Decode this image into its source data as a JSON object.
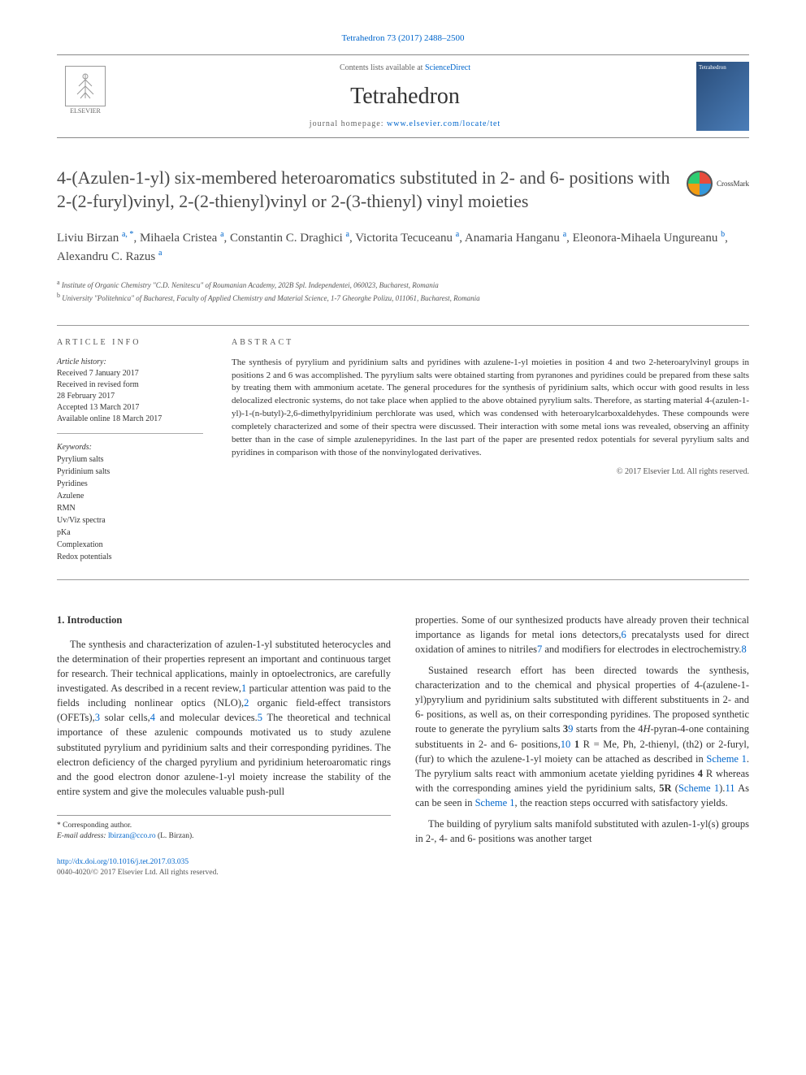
{
  "citation": "Tetrahedron 73 (2017) 2488–2500",
  "masthead": {
    "contents_prefix": "Contents lists available at ",
    "contents_link": "ScienceDirect",
    "journal": "Tetrahedron",
    "homepage_prefix": "journal homepage: ",
    "homepage_link": "www.elsevier.com/locate/tet",
    "publisher": "ELSEVIER",
    "cover_text": "Tetrahedron"
  },
  "crossmark": "CrossMark",
  "title": "4-(Azulen-1-yl) six-membered heteroaromatics substituted in 2- and 6- positions with 2-(2-furyl)vinyl, 2-(2-thienyl)vinyl or 2-(3-thienyl) vinyl moieties",
  "authors_html": "Liviu Birzan <sup class='author-sup'>a, *</sup>, Mihaela Cristea <sup class='author-sup'>a</sup>, Constantin C. Draghici <sup class='author-sup'>a</sup>, Victorita Tecuceanu <sup class='author-sup'>a</sup>, Anamaria Hanganu <sup class='author-sup'>a</sup>, Eleonora-Mihaela Ungureanu <sup class='author-sup'>b</sup>, Alexandru C. Razus <sup class='author-sup'>a</sup>",
  "affiliations": [
    {
      "sup": "a",
      "text": "Institute of Organic Chemistry \"C.D. Nenitescu\" of Roumanian Academy, 202B Spl. Independentei, 060023, Bucharest, Romania"
    },
    {
      "sup": "b",
      "text": "University \"Politehnica\" of Bucharest, Faculty of Applied Chemistry and Material Science, 1-7 Gheorghe Polizu, 011061, Bucharest, Romania"
    }
  ],
  "info": {
    "heading": "ARTICLE INFO",
    "history_label": "Article history:",
    "history": [
      "Received 7 January 2017",
      "Received in revised form",
      "28 February 2017",
      "Accepted 13 March 2017",
      "Available online 18 March 2017"
    ],
    "keywords_label": "Keywords:",
    "keywords": [
      "Pyrylium salts",
      "Pyridinium salts",
      "Pyridines",
      "Azulene",
      "RMN",
      "Uv/Viz spectra",
      "pKa",
      "Complexation",
      "Redox potentials"
    ]
  },
  "abstract": {
    "heading": "ABSTRACT",
    "text": "The synthesis of pyrylium and pyridinium salts and pyridines with azulene-1-yl moieties in position 4 and two 2-heteroarylvinyl groups in positions 2 and 6 was accomplished. The pyrylium salts were obtained starting from pyranones and pyridines could be prepared from these salts by treating them with ammonium acetate. The general procedures for the synthesis of pyridinium salts, which occur with good results in less delocalized electronic systems, do not take place when applied to the above obtained pyrylium salts. Therefore, as starting material 4-(azulen-1-yl)-1-(n-butyl)-2,6-dimethylpyridinium perchlorate was used, which was condensed with heteroarylcarboxaldehydes. These compounds were completely characterized and some of their spectra were discussed. Their interaction with some metal ions was revealed, observing an affinity better than in the case of simple azulenepyridines. In the last part of the paper are presented redox potentials for several pyrylium salts and pyridines in comparison with those of the nonvinylogated derivatives.",
    "copyright": "© 2017 Elsevier Ltd. All rights reserved."
  },
  "body": {
    "section_heading": "1. Introduction",
    "left_paras": [
      "The synthesis and characterization of azulen-1-yl substituted heterocycles and the determination of their properties represent an important and continuous target for research. Their technical applications, mainly in optoelectronics, are carefully investigated. As described in a recent review,<a class='ref-link' data-name='citation-ref' data-interactable='true'>1</a> particular attention was paid to the fields including nonlinear optics (NLO),<a class='ref-link' data-name='citation-ref' data-interactable='true'>2</a> organic field-effect transistors (OFETs),<a class='ref-link' data-name='citation-ref' data-interactable='true'>3</a> solar cells,<a class='ref-link' data-name='citation-ref' data-interactable='true'>4</a> and molecular devices.<a class='ref-link' data-name='citation-ref' data-interactable='true'>5</a> The theoretical and technical importance of these azulenic compounds motivated us to study azulene substituted pyrylium and pyridinium salts and their corresponding pyridines. The electron deficiency of the charged pyrylium and pyridinium heteroaromatic rings and the good electron donor azulene-1-yl moiety increase the stability of the entire system and give the molecules valuable push-pull"
    ],
    "right_paras": [
      "properties. Some of our synthesized products have already proven their technical importance as ligands for metal ions detectors,<a class='ref-link' data-name='citation-ref' data-interactable='true'>6</a> precatalysts used for direct oxidation of amines to nitriles<a class='ref-link' data-name='citation-ref' data-interactable='true'>7</a> and modifiers for electrodes in electrochemistry.<a class='ref-link' data-name='citation-ref' data-interactable='true'>8</a>",
      "Sustained research effort has been directed towards the synthesis, characterization and to the chemical and physical properties of 4-(azulene-1-yl)pyrylium and pyridinium salts substituted with different substituents in 2- and 6- positions, as well as, on their corresponding pyridines. The proposed synthetic route to generate the pyrylium salts <b>3</b><a class='ref-link' data-name='citation-ref' data-interactable='true'>9</a> starts from the 4<i>H</i>-pyran-4-one containing substituents in 2- and 6- positions,<a class='ref-link' data-name='citation-ref' data-interactable='true'>10</a> <b>1</b> R = Me, Ph, 2-thienyl, (th2) or 2-furyl, (fur) to which the azulene-1-yl moiety can be attached as described in <a class='ref-link' data-name='scheme-link' data-interactable='true'>Scheme 1</a>. The pyrylium salts react with ammonium acetate yielding pyridines <b>4</b> R whereas with the corresponding amines yield the pyridinium salts, <b>5R</b> (<a class='ref-link' data-name='scheme-link' data-interactable='true'>Scheme 1</a>).<a class='ref-link' data-name='citation-ref' data-interactable='true'>11</a> As can be seen in <a class='ref-link' data-name='scheme-link' data-interactable='true'>Scheme 1</a>, the reaction steps occurred with satisfactory yields.",
      "The building of pyrylium salts manifold substituted with azulen-1-yl(s) groups in 2-, 4- and 6- positions was another target"
    ]
  },
  "footnote": {
    "corr": "* Corresponding author.",
    "email_label": "E-mail address: ",
    "email": "lbirzan@cco.ro",
    "email_suffix": " (L. Birzan)."
  },
  "footer": {
    "doi": "http://dx.doi.org/10.1016/j.tet.2017.03.035",
    "issn_line": "0040-4020/© 2017 Elsevier Ltd. All rights reserved."
  },
  "colors": {
    "link": "#0066cc",
    "text": "#333333",
    "rule": "#999999"
  }
}
